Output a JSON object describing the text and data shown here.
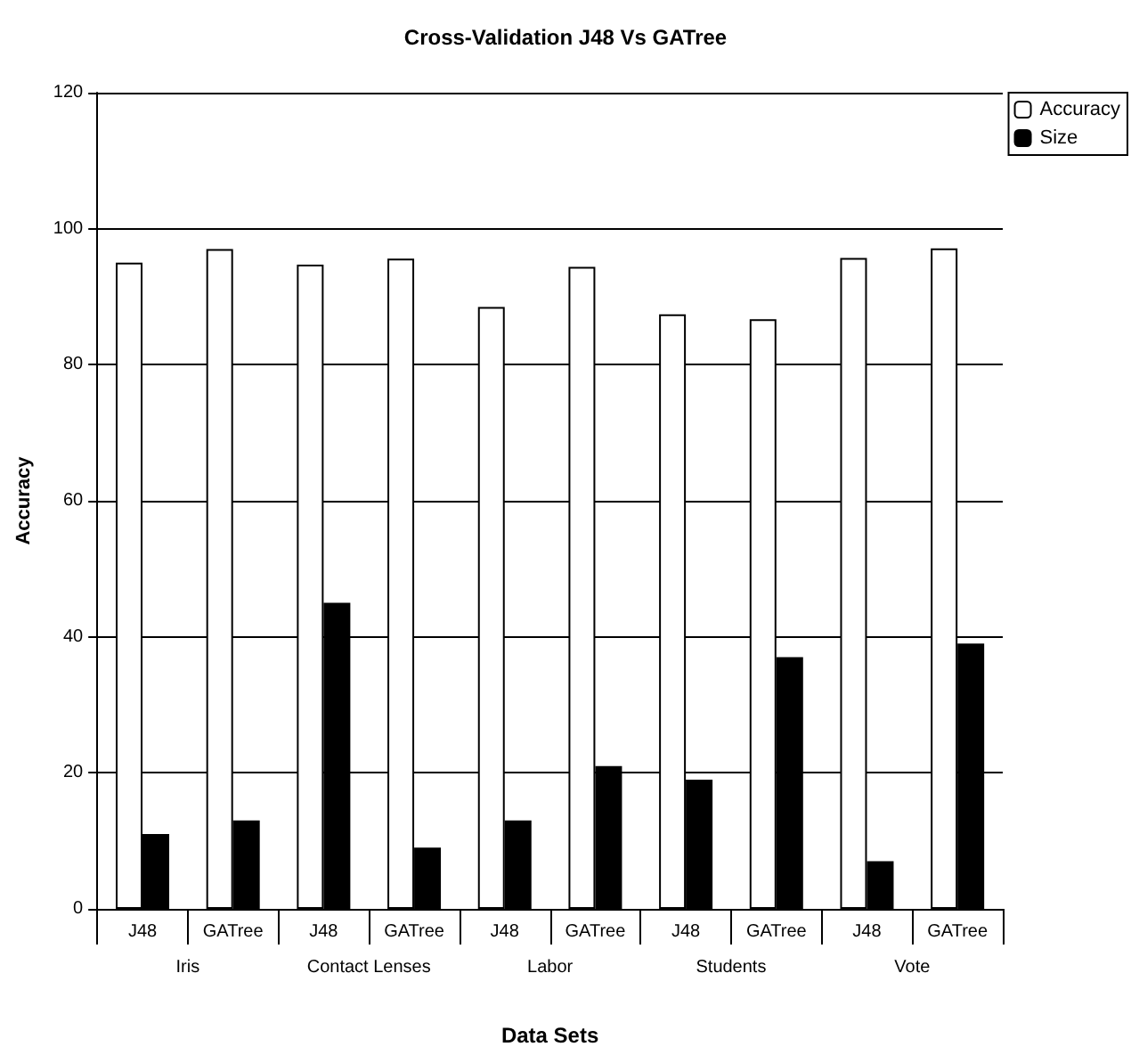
{
  "chart_data": {
    "type": "bar",
    "title": "Cross-Validation J48 Vs GATree",
    "xlabel": "Data Sets",
    "ylabel": "Accuracy",
    "categories": [
      "J48",
      "GATree",
      "J48",
      "GATree",
      "J48",
      "GATree",
      "J48",
      "GATree",
      "J48",
      "GATree"
    ],
    "series": [
      {
        "name": "Accuracy",
        "color": "#ffffff",
        "values": [
          95,
          97,
          94.7,
          95.6,
          88.5,
          94.4,
          87.4,
          86.7,
          95.7,
          97.1
        ]
      },
      {
        "name": "Size",
        "color": "#000000",
        "values": [
          11,
          13,
          45,
          9,
          13,
          21,
          19,
          37,
          7,
          39
        ]
      }
    ],
    "annotations": [
      "Iris",
      "Contact Lenses",
      "Labor",
      "Students",
      "Vote"
    ],
    "ylim": [
      0,
      120
    ],
    "yticks": [
      0,
      20,
      40,
      60,
      80,
      100,
      120
    ],
    "grid": "y",
    "legend": "top right"
  }
}
